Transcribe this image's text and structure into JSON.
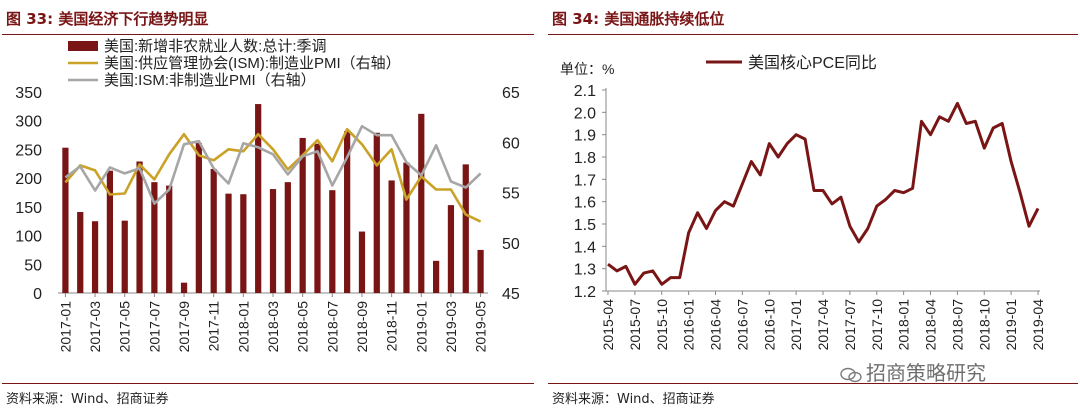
{
  "left_panel": {
    "title": "图 33:  美国经济下行趋势明显",
    "source": "资料来源：Wind、招商证券"
  },
  "right_panel": {
    "title": "图 34:  美国通胀持续低位",
    "source": "资料来源：Wind、招商证券"
  },
  "watermark": "招商策略研究",
  "colors": {
    "bar": "#7a1516",
    "ism_mfg": "#c9a227",
    "ism_nonmfg": "#a6a6a6",
    "pce": "#7a1516",
    "title": "#7a1516"
  },
  "chart_data": [
    {
      "type": "bar+line",
      "title": "",
      "x_ticks": [
        "2017-01",
        "2017-03",
        "2017-05",
        "2017-07",
        "2017-09",
        "2017-11",
        "2018-01",
        "2018-03",
        "2018-05",
        "2018-07",
        "2018-09",
        "2018-11",
        "2019-01",
        "2019-03",
        "2019-05"
      ],
      "y_left": {
        "ylim": [
          0,
          350
        ],
        "ticks": [
          "0",
          "50",
          "100",
          "150",
          "200",
          "250",
          "300",
          "350"
        ]
      },
      "y_right": {
        "ylim": [
          45,
          65
        ],
        "ticks": [
          "45",
          "50",
          "55",
          "60",
          "65"
        ]
      },
      "series": [
        {
          "name": "美国:新增非农就业人数:总计:季调",
          "type": "bar",
          "axis": "left",
          "color": "#7a1516",
          "values": [
            253,
            141,
            125,
            213,
            126,
            229,
            193,
            187,
            18,
            261,
            216,
            173,
            172,
            329,
            181,
            193,
            270,
            260,
            179,
            282,
            107,
            279,
            196,
            227,
            312,
            56,
            153,
            224,
            75
          ]
        },
        {
          "name": "美国:供应管理协会(ISM):制造业PMI（右轴）",
          "type": "line",
          "axis": "right",
          "color": "#c9a227",
          "values": [
            56.0,
            57.7,
            57.2,
            54.8,
            54.9,
            57.8,
            56.3,
            58.8,
            60.8,
            58.7,
            58.2,
            59.3,
            59.1,
            60.8,
            59.3,
            57.3,
            58.7,
            60.2,
            58.1,
            61.3,
            59.8,
            57.7,
            59.3,
            54.3,
            56.6,
            55.3,
            55.3,
            52.8,
            52.1
          ]
        },
        {
          "name": "美国:ISM:非制造业PMI（右轴）",
          "type": "line",
          "axis": "right",
          "color": "#a6a6a6",
          "values": [
            56.5,
            57.6,
            55.2,
            57.5,
            56.9,
            57.4,
            53.9,
            55.3,
            59.8,
            60.1,
            57.4,
            55.9,
            59.9,
            59.5,
            58.8,
            56.8,
            58.6,
            59.1,
            55.7,
            58.5,
            61.6,
            60.7,
            60.7,
            58.0,
            56.7,
            59.7,
            56.1,
            55.5,
            56.9
          ]
        }
      ],
      "legend": "top-left"
    },
    {
      "type": "line",
      "title": "",
      "ylabel": "单位：%",
      "x_ticks": [
        "2015-04",
        "2015-07",
        "2015-10",
        "2016-01",
        "2016-04",
        "2016-07",
        "2016-10",
        "2017-01",
        "2017-04",
        "2017-07",
        "2017-10",
        "2018-01",
        "2018-04",
        "2018-07",
        "2018-10",
        "2019-01",
        "2019-04"
      ],
      "ylim": [
        1.2,
        2.1
      ],
      "y_ticks": [
        "1.2",
        "1.3",
        "1.4",
        "1.5",
        "1.6",
        "1.7",
        "1.8",
        "1.9",
        "2.0",
        "2.1"
      ],
      "series": [
        {
          "name": "美国核心PCE同比",
          "color": "#7a1516",
          "values": [
            1.32,
            1.29,
            1.31,
            1.23,
            1.28,
            1.29,
            1.23,
            1.26,
            1.26,
            1.46,
            1.55,
            1.48,
            1.56,
            1.6,
            1.58,
            1.68,
            1.78,
            1.72,
            1.86,
            1.8,
            1.86,
            1.9,
            1.88,
            1.65,
            1.65,
            1.59,
            1.62,
            1.49,
            1.42,
            1.48,
            1.58,
            1.61,
            1.65,
            1.64,
            1.66,
            1.96,
            1.9,
            1.98,
            1.96,
            2.04,
            1.95,
            1.96,
            1.84,
            1.93,
            1.95,
            1.78,
            1.64,
            1.49,
            1.57
          ]
        }
      ],
      "legend": "top"
    }
  ]
}
